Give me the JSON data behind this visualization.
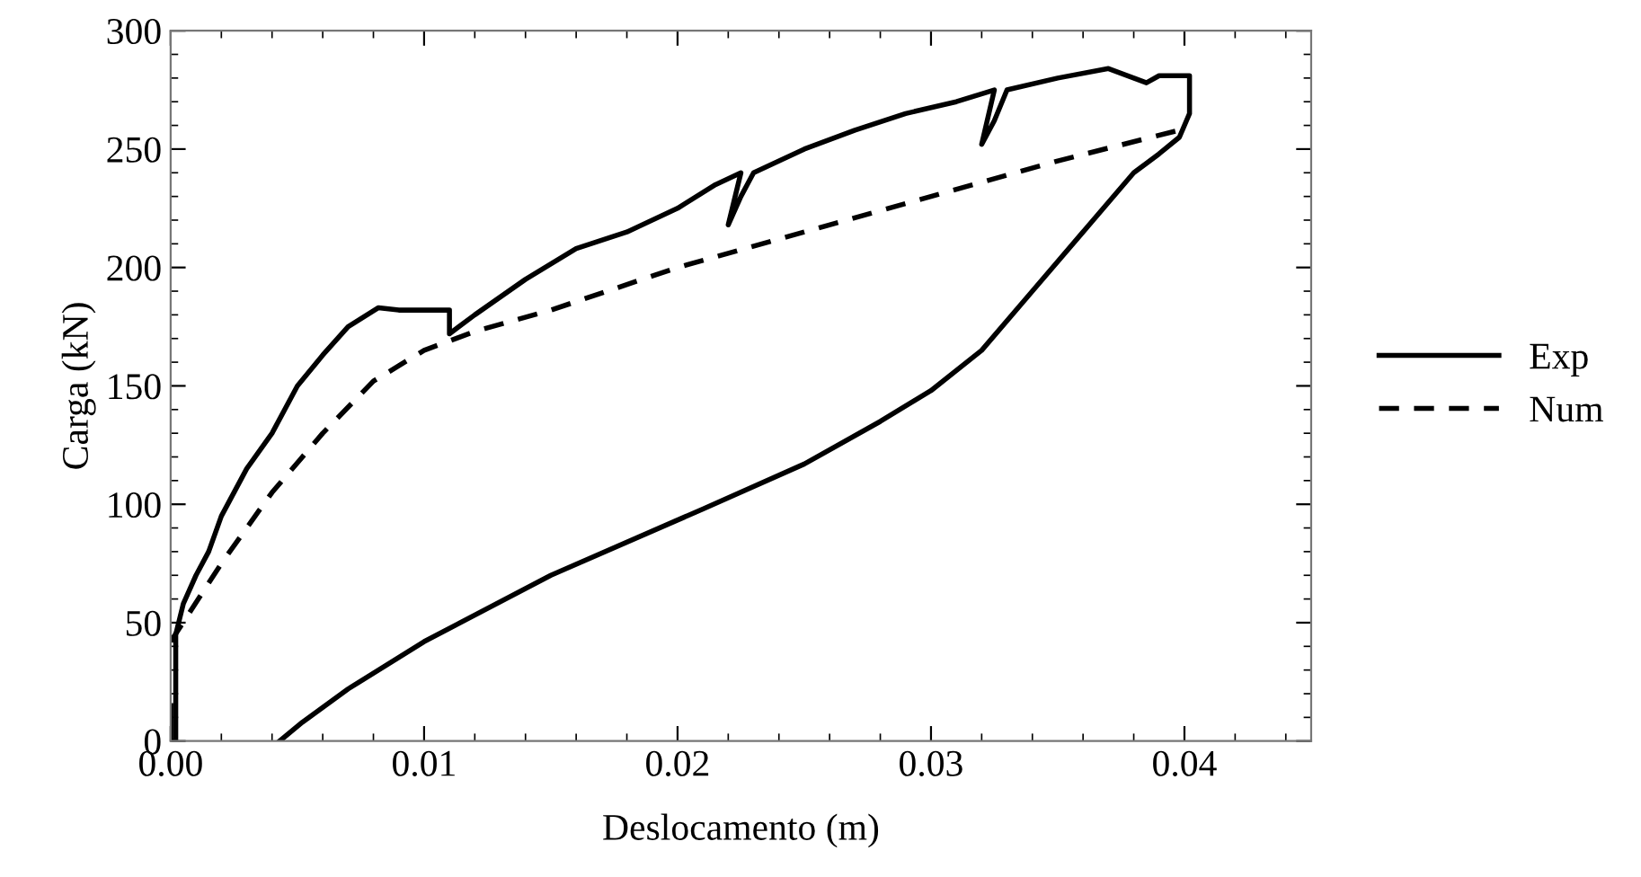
{
  "chart_data": {
    "type": "line",
    "xlabel": "Deslocamento (m)",
    "ylabel": "Carga (kN)",
    "xlim": [
      0,
      0.045
    ],
    "xticks": [
      {
        "value": 0,
        "label": "0.00"
      },
      {
        "value": 0.01,
        "label": "0.01"
      },
      {
        "value": 0.02,
        "label": "0.02"
      },
      {
        "value": 0.03,
        "label": "0.03"
      },
      {
        "value": 0.04,
        "label": "0.04"
      }
    ],
    "ylim": [
      0,
      300
    ],
    "yticks": [
      0,
      50,
      100,
      150,
      200,
      250,
      300
    ],
    "grid": false,
    "legend": "right",
    "marker": "none",
    "series": [
      {
        "name": "Exp",
        "color": "#000000",
        "line_style": "solid",
        "x": [
          0,
          0,
          0.0002,
          0.0002,
          0.0005,
          0.001,
          0.0015,
          0.002,
          0.003,
          0.004,
          0.005,
          0.006,
          0.007,
          0.0082,
          0.009,
          0.011,
          0.011,
          0.012,
          0.014,
          0.016,
          0.018,
          0.02,
          0.0215,
          0.0225,
          0.022,
          0.0225,
          0.023,
          0.025,
          0.027,
          0.029,
          0.031,
          0.0325,
          0.032,
          0.0325,
          0.033,
          0.035,
          0.037,
          0.0385,
          0.039,
          0.0402,
          0.0402,
          0.0398,
          0.039,
          0.038,
          0.036,
          0.034,
          0.032,
          0.03,
          0.028,
          0.025,
          0.021,
          0.015,
          0.01,
          0.007,
          0.0052,
          0.0043
        ],
        "values": [
          15,
          0,
          0,
          45,
          58,
          70,
          80,
          95,
          115,
          130,
          150,
          163,
          175,
          183,
          182,
          182,
          172,
          180,
          195,
          208,
          215,
          225,
          235,
          240,
          218,
          230,
          240,
          250,
          258,
          265,
          270,
          275,
          252,
          262,
          275,
          280,
          284,
          278,
          281,
          281,
          265,
          255,
          248,
          240,
          215,
          190,
          165,
          148,
          135,
          117,
          98,
          70,
          42,
          22,
          8,
          0
        ]
      },
      {
        "name": "Num",
        "color": "#000000",
        "line_style": "dashed",
        "x": [
          0,
          0.002,
          0.004,
          0.006,
          0.008,
          0.01,
          0.012,
          0.015,
          0.02,
          0.025,
          0.03,
          0.035,
          0.0398
        ],
        "values": [
          42,
          75,
          105,
          130,
          152,
          165,
          173,
          182,
          200,
          215,
          230,
          245,
          258
        ]
      }
    ]
  }
}
